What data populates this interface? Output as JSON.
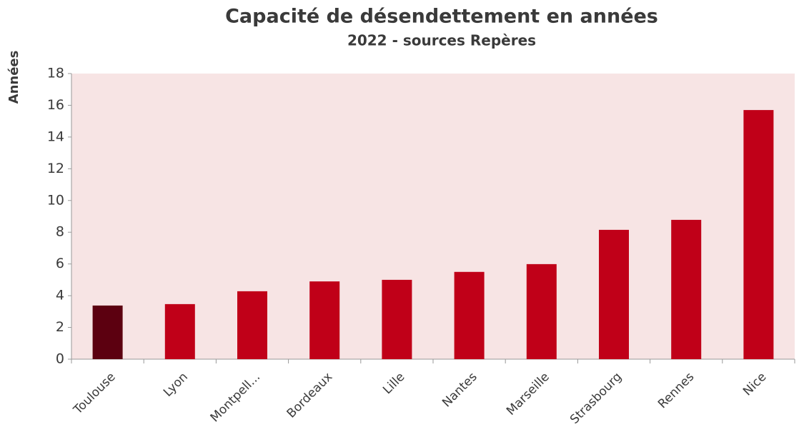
{
  "chart_data": {
    "type": "bar",
    "title": "Capacité de désendettement  en années",
    "subtitle": "2022 - sources Repères",
    "y_label": "Années",
    "categories": [
      "Toulouse",
      "Lyon",
      "Montpell...",
      "Bordeaux",
      "Lille",
      "Nantes",
      "Marseille",
      "Strasbourg",
      "Rennes",
      "Nice"
    ],
    "values": [
      3.38,
      3.47,
      4.28,
      4.9,
      5.0,
      5.5,
      5.99,
      8.15,
      8.78,
      15.7
    ],
    "colors": [
      "#5c0010",
      "#c00018",
      "#c00018",
      "#c00018",
      "#c00018",
      "#c00018",
      "#c00018",
      "#c00018",
      "#c00018",
      "#c00018"
    ],
    "plot_background": "#f7e4e4",
    "ylim": [
      0,
      18
    ],
    "yticks": [
      0,
      2,
      4,
      6,
      8,
      10,
      12,
      14,
      16,
      18
    ],
    "grid": false
  }
}
